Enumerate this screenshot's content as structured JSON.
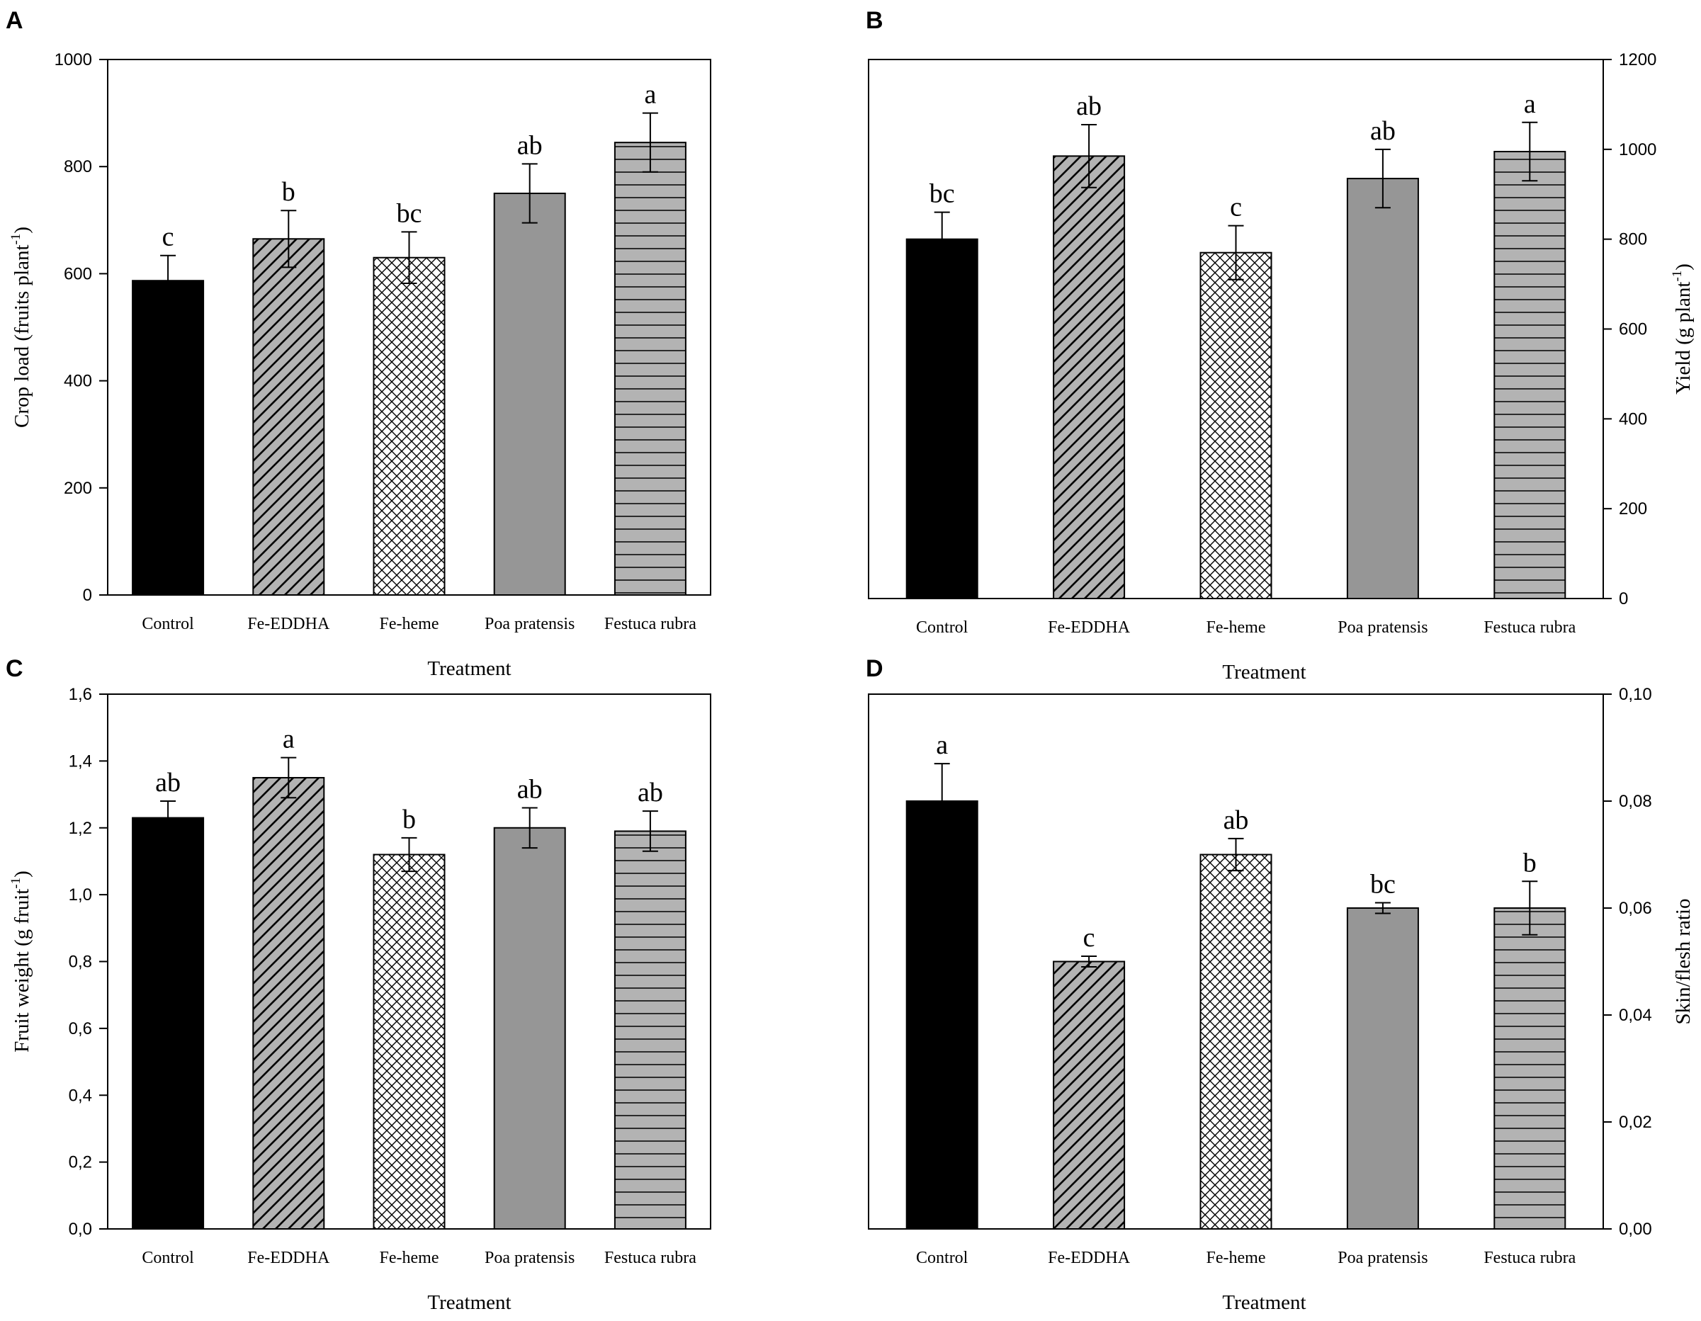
{
  "colors": {
    "control": "#000000",
    "fe_eddha_bg": "#b3b3b3",
    "fe_heme_bg": "#ffffff",
    "poa": "#969696",
    "festuca_bg": "#b3b3b3",
    "axis": "#000000"
  },
  "chart_data": [
    {
      "type": "bar",
      "panel_label": "A",
      "categories": [
        "Control",
        "Fe-EDDHA",
        "Fe-heme",
        "Poa pratensis",
        "Festuca rubra"
      ],
      "values": [
        587,
        665,
        630,
        750,
        845
      ],
      "errors": [
        47,
        53,
        48,
        55,
        55
      ],
      "letters": [
        "c",
        "b",
        "bc",
        "ab",
        "a"
      ],
      "ylabel": "Crop load (fruits plant",
      "ylabel_sup": "-1",
      "ylabel_end": ")",
      "xlabel": "Treatment",
      "ylim": [
        0,
        1000
      ],
      "yticks": [
        "0",
        "200",
        "400",
        "600",
        "800",
        "1000"
      ],
      "yaxis_side": "left"
    },
    {
      "type": "bar",
      "panel_label": "B",
      "categories": [
        "Control",
        "Fe-EDDHA",
        "Fe-heme",
        "Poa pratensis",
        "Festuca rubra"
      ],
      "values": [
        800,
        985,
        770,
        935,
        995
      ],
      "errors": [
        60,
        70,
        60,
        65,
        65
      ],
      "letters": [
        "bc",
        "ab",
        "c",
        "ab",
        "a"
      ],
      "ylabel": "Yield (g plant",
      "ylabel_sup": "-1",
      "ylabel_end": ")",
      "xlabel": "Treatment",
      "ylim": [
        0,
        1200
      ],
      "yticks": [
        "0",
        "200",
        "400",
        "600",
        "800",
        "1000",
        "1200"
      ],
      "yaxis_side": "right"
    },
    {
      "type": "bar",
      "panel_label": "C",
      "categories": [
        "Control",
        "Fe-EDDHA",
        "Fe-heme",
        "Poa pratensis",
        "Festuca rubra"
      ],
      "values": [
        1.23,
        1.35,
        1.12,
        1.2,
        1.19
      ],
      "errors": [
        0.05,
        0.06,
        0.05,
        0.06,
        0.06
      ],
      "letters": [
        "ab",
        "a",
        "b",
        "ab",
        "ab"
      ],
      "ylabel": "Fruit weight (g fruit",
      "ylabel_sup": "-1",
      "ylabel_end": ")",
      "xlabel": "Treatment",
      "ylim": [
        0,
        1.6
      ],
      "yticks": [
        "0,0",
        "0,2",
        "0,4",
        "0,6",
        "0,8",
        "1,0",
        "1,2",
        "1,4",
        "1,6"
      ],
      "yaxis_side": "left"
    },
    {
      "type": "bar",
      "panel_label": "D",
      "categories": [
        "Control",
        "Fe-EDDHA",
        "Fe-heme",
        "Poa pratensis",
        "Festuca rubra"
      ],
      "values": [
        0.08,
        0.05,
        0.07,
        0.06,
        0.06
      ],
      "errors": [
        0.007,
        0.001,
        0.003,
        0.001,
        0.005
      ],
      "letters": [
        "a",
        "c",
        "ab",
        "bc",
        "b"
      ],
      "ylabel": "Skin/flesh ratio",
      "ylabel_sup": "",
      "ylabel_end": "",
      "xlabel": "Treatment",
      "ylim": [
        0,
        0.1
      ],
      "yticks": [
        "0,00",
        "0,02",
        "0,04",
        "0,06",
        "0,08",
        "0,10"
      ],
      "yaxis_side": "right"
    }
  ]
}
